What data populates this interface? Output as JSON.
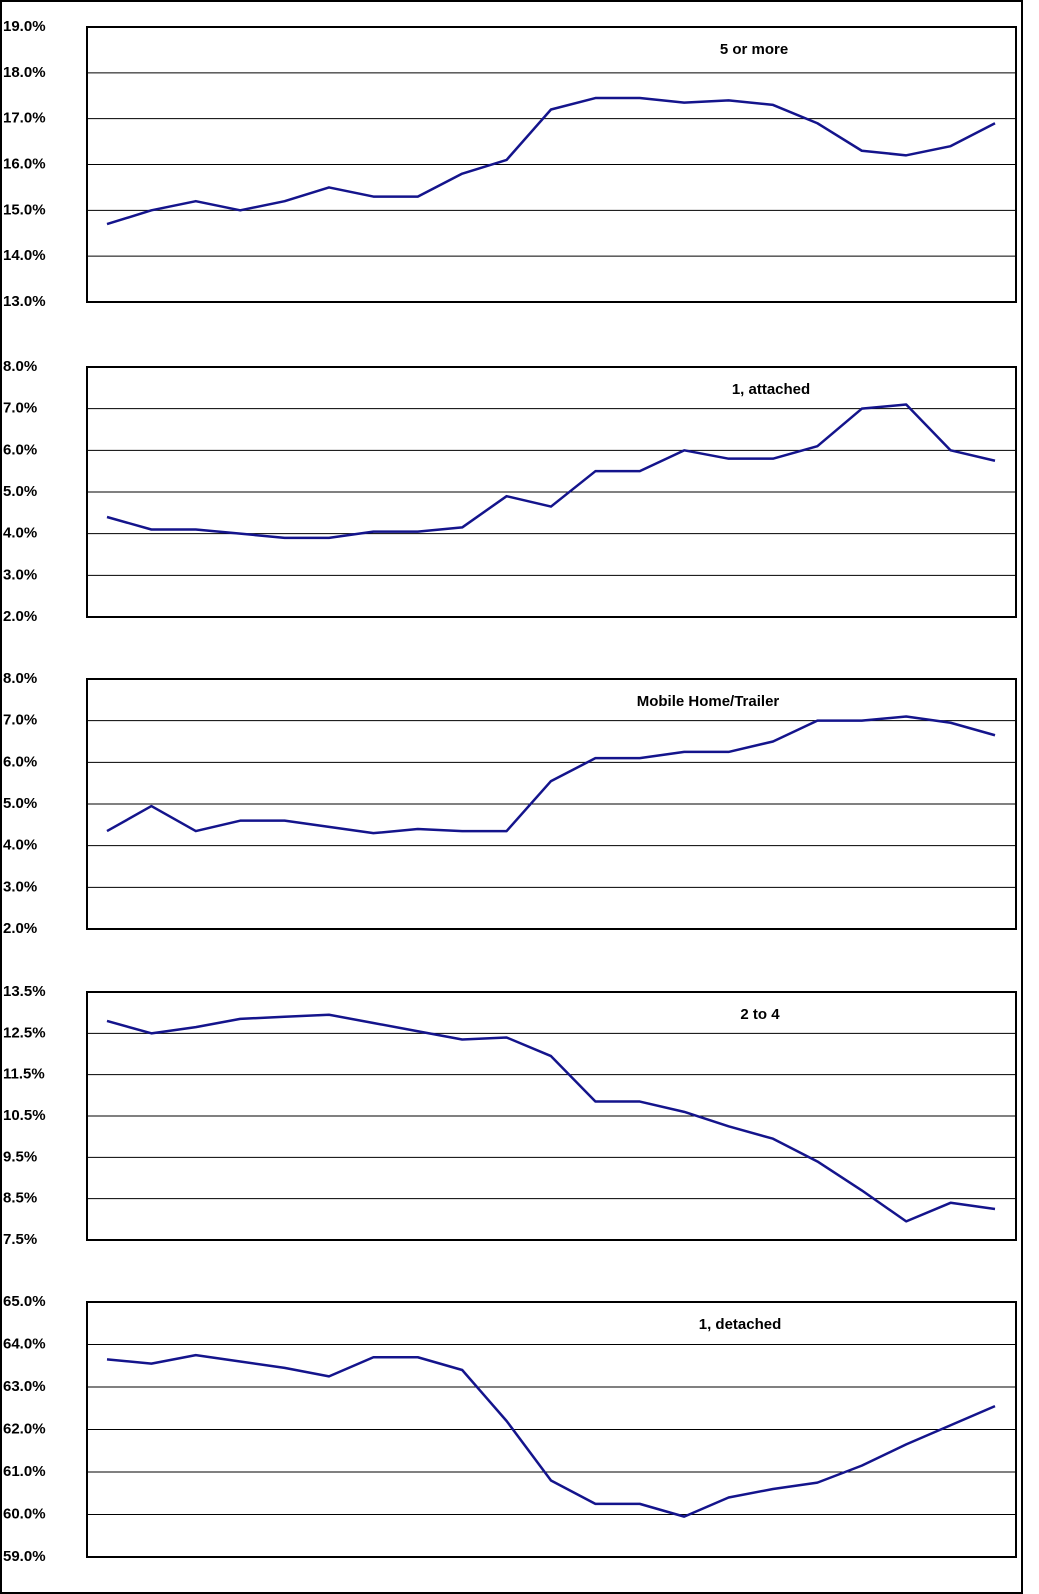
{
  "chart_data": [
    {
      "type": "line",
      "title": "5 or more",
      "color": "#14148c",
      "grid": true,
      "categories": [
        null,
        null,
        null,
        null,
        null,
        null,
        null,
        null,
        null,
        null,
        null,
        null,
        null,
        null,
        null,
        null,
        null,
        null,
        null,
        null,
        null
      ],
      "values": [
        14.7,
        15.0,
        15.2,
        15.0,
        15.2,
        15.5,
        15.3,
        15.3,
        15.8,
        16.1,
        17.2,
        17.45,
        17.45,
        17.35,
        17.4,
        17.3,
        16.9,
        16.3,
        16.2,
        16.4,
        16.9
      ],
      "ylim": [
        13,
        19
      ],
      "yticks": [
        {
          "value": 13,
          "label": "13.0%"
        },
        {
          "value": 14,
          "label": "14.0%"
        },
        {
          "value": 15,
          "label": "15.0%"
        },
        {
          "value": 16,
          "label": "16.0%"
        },
        {
          "value": 17,
          "label": "17.0%"
        },
        {
          "value": 18,
          "label": "18.0%"
        },
        {
          "value": 19,
          "label": "19.0%"
        }
      ]
    },
    {
      "type": "line",
      "title": "1, attached",
      "color": "#14148c",
      "grid": true,
      "categories": [
        null,
        null,
        null,
        null,
        null,
        null,
        null,
        null,
        null,
        null,
        null,
        null,
        null,
        null,
        null,
        null,
        null,
        null,
        null,
        null,
        null
      ],
      "values": [
        4.4,
        4.1,
        4.1,
        4.0,
        3.9,
        3.9,
        4.05,
        4.05,
        4.15,
        4.9,
        4.65,
        5.5,
        5.5,
        6.0,
        5.8,
        5.8,
        6.1,
        7.0,
        7.1,
        6.0,
        5.75
      ],
      "ylim": [
        2,
        8
      ],
      "yticks": [
        {
          "value": 2,
          "label": "2.0%"
        },
        {
          "value": 3,
          "label": "3.0%"
        },
        {
          "value": 4,
          "label": "4.0%"
        },
        {
          "value": 5,
          "label": "5.0%"
        },
        {
          "value": 6,
          "label": "6.0%"
        },
        {
          "value": 7,
          "label": "7.0%"
        },
        {
          "value": 8,
          "label": "8.0%"
        }
      ]
    },
    {
      "type": "line",
      "title": "Mobile Home/Trailer",
      "color": "#14148c",
      "grid": true,
      "categories": [
        null,
        null,
        null,
        null,
        null,
        null,
        null,
        null,
        null,
        null,
        null,
        null,
        null,
        null,
        null,
        null,
        null,
        null,
        null,
        null,
        null
      ],
      "values": [
        4.35,
        4.95,
        4.35,
        4.6,
        4.6,
        4.45,
        4.3,
        4.4,
        4.35,
        4.35,
        5.55,
        6.1,
        6.1,
        6.25,
        6.25,
        6.5,
        7.0,
        7.0,
        7.1,
        6.95,
        6.65
      ],
      "ylim": [
        2,
        8
      ],
      "yticks": [
        {
          "value": 2,
          "label": "2.0%"
        },
        {
          "value": 3,
          "label": "3.0%"
        },
        {
          "value": 4,
          "label": "4.0%"
        },
        {
          "value": 5,
          "label": "5.0%"
        },
        {
          "value": 6,
          "label": "6.0%"
        },
        {
          "value": 7,
          "label": "7.0%"
        },
        {
          "value": 8,
          "label": "8.0%"
        }
      ]
    },
    {
      "type": "line",
      "title": "2 to 4",
      "color": "#14148c",
      "grid": true,
      "categories": [
        null,
        null,
        null,
        null,
        null,
        null,
        null,
        null,
        null,
        null,
        null,
        null,
        null,
        null,
        null,
        null,
        null,
        null,
        null,
        null,
        null
      ],
      "values": [
        12.8,
        12.5,
        12.65,
        12.85,
        12.9,
        12.95,
        12.75,
        12.55,
        12.35,
        12.4,
        11.95,
        10.85,
        10.85,
        10.6,
        10.25,
        9.95,
        9.4,
        8.7,
        7.95,
        8.4,
        8.25
      ],
      "ylim": [
        7.5,
        13.5
      ],
      "yticks": [
        {
          "value": 7.5,
          "label": "7.5%"
        },
        {
          "value": 8.5,
          "label": "8.5%"
        },
        {
          "value": 9.5,
          "label": "9.5%"
        },
        {
          "value": 10.5,
          "label": "10.5%"
        },
        {
          "value": 11.5,
          "label": "11.5%"
        },
        {
          "value": 12.5,
          "label": "12.5%"
        },
        {
          "value": 13.5,
          "label": "13.5%"
        }
      ]
    },
    {
      "type": "line",
      "title": "1, detached",
      "color": "#14148c",
      "grid": true,
      "categories": [
        null,
        null,
        null,
        null,
        null,
        null,
        null,
        null,
        null,
        null,
        null,
        null,
        null,
        null,
        null,
        null,
        null,
        null,
        null,
        null,
        null
      ],
      "values": [
        63.65,
        63.55,
        63.75,
        63.6,
        63.45,
        63.25,
        63.7,
        63.7,
        63.4,
        62.2,
        60.8,
        60.25,
        60.25,
        59.95,
        60.4,
        60.6,
        60.75,
        61.15,
        61.65,
        62.1,
        62.55
      ],
      "ylim": [
        59,
        65
      ],
      "yticks": [
        {
          "value": 59,
          "label": "59.0%"
        },
        {
          "value": 60,
          "label": "60.0%"
        },
        {
          "value": 61,
          "label": "61.0%"
        },
        {
          "value": 62,
          "label": "62.0%"
        },
        {
          "value": 63,
          "label": "63.0%"
        },
        {
          "value": 64,
          "label": "64.0%"
        },
        {
          "value": 65,
          "label": "65.0%"
        }
      ]
    }
  ]
}
